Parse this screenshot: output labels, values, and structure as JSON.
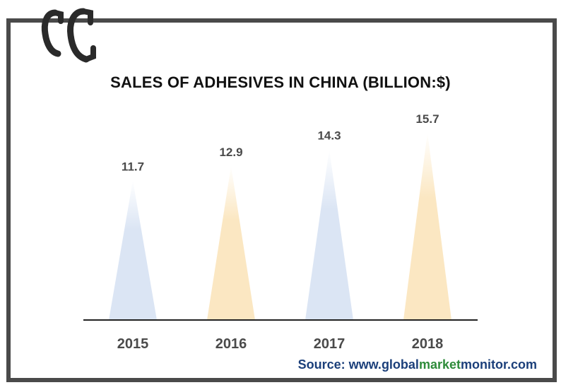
{
  "chart_data": {
    "type": "bar",
    "bar_shape": "triangle",
    "title": "SALES OF ADHESIVES IN CHINA (BILLION:$)",
    "categories": [
      "2015",
      "2016",
      "2017",
      "2018"
    ],
    "values": [
      11.7,
      12.9,
      14.3,
      15.7
    ],
    "data_labels": [
      "11.7",
      "12.9",
      "14.3",
      "15.7"
    ],
    "ylim": [
      0,
      18
    ],
    "grid": false,
    "legend": "none",
    "colors": [
      "#dbe5f4",
      "#fbe7c2",
      "#dbe5f4",
      "#fbe7c2"
    ],
    "axis_color": "#222222",
    "label_color": "#4a4a4a"
  },
  "source": {
    "prefix": "Source: www.",
    "part1": "global",
    "part2": "market",
    "part3": "monitor",
    "suffix": ".com"
  },
  "logo": {
    "icon": "gmm-logo-icon",
    "color": "#2a2a2a"
  },
  "frame_color": "#4a4a4a"
}
